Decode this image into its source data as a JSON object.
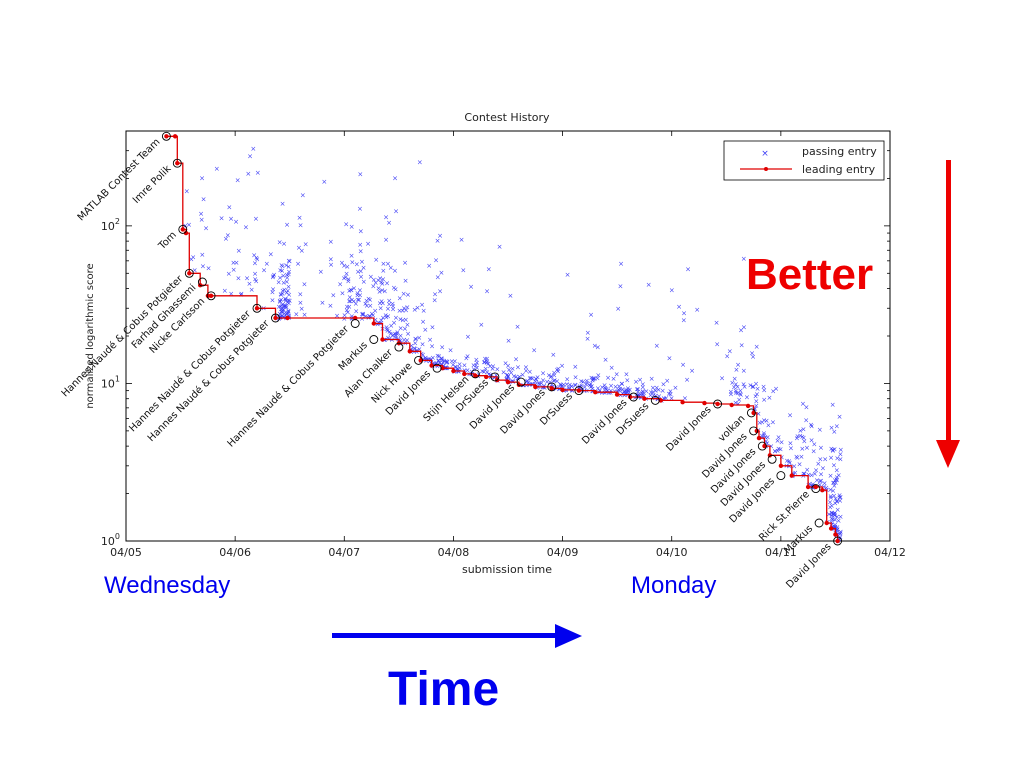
{
  "annotations": {
    "start_day": "Wednesday",
    "end_day": "Monday",
    "better": "Better",
    "time": "Time",
    "colors": {
      "better": "#ee0000",
      "time": "#0000ee",
      "days": "#0000ee"
    }
  },
  "chart_data": {
    "type": "scatter",
    "title": "Contest History",
    "xlabel": "submission time",
    "ylabel": "normalized logarithmic score",
    "x_unit": "days (fractional), 04/05 = 5.0",
    "xlim": [
      5.0,
      12.0
    ],
    "ylim": [
      1,
      400
    ],
    "yscale": "log",
    "grid": false,
    "legend_position": "top-right",
    "x_ticks": [
      "04/05",
      "04/06",
      "04/07",
      "04/08",
      "04/09",
      "04/10",
      "04/11",
      "04/12"
    ],
    "x_tick_values": [
      5,
      6,
      7,
      8,
      9,
      10,
      11,
      12
    ],
    "y_ticks": [
      {
        "value": 1,
        "base": "10",
        "exp": "0"
      },
      {
        "value": 10,
        "base": "10",
        "exp": "1"
      },
      {
        "value": 100,
        "base": "10",
        "exp": "2"
      }
    ],
    "series": [
      {
        "name": "passing entry",
        "marker": "x",
        "color": "#3b3bf5"
      },
      {
        "name": "leading entry",
        "marker": "dot",
        "color": "#e00000",
        "x": [
          5.37,
          5.45,
          5.47,
          5.52,
          5.55,
          5.58,
          5.68,
          5.75,
          5.78,
          6.2,
          6.37,
          6.48,
          7.1,
          7.27,
          7.35,
          7.5,
          7.6,
          7.7,
          7.8,
          7.9,
          8.0,
          8.1,
          8.2,
          8.3,
          8.4,
          8.5,
          8.6,
          8.75,
          8.9,
          9.0,
          9.15,
          9.3,
          9.5,
          9.62,
          9.75,
          9.9,
          10.1,
          10.3,
          10.42,
          10.55,
          10.7,
          10.75,
          10.78,
          10.8,
          10.85,
          10.9,
          11.0,
          11.1,
          11.25,
          11.32,
          11.38,
          11.42,
          11.46,
          11.5,
          11.52
        ],
        "y": [
          370,
          370,
          250,
          95,
          90,
          50,
          42,
          36,
          36,
          30,
          26,
          26,
          26,
          24,
          19,
          18,
          16,
          14,
          13,
          12.5,
          12,
          11.5,
          11.2,
          11,
          10.5,
          10.2,
          9.8,
          9.5,
          9.3,
          9.1,
          9,
          8.8,
          8.5,
          8.2,
          8,
          7.8,
          7.6,
          7.5,
          7.4,
          7.3,
          7.2,
          6.5,
          5,
          4.5,
          4,
          3.5,
          3,
          2.6,
          2.2,
          2.2,
          2.1,
          1.3,
          1.2,
          1.1,
          1.0
        ]
      }
    ],
    "annotations": [
      {
        "text": "MATLAB Contest Team",
        "x": 5.37,
        "y": 370,
        "circled": true
      },
      {
        "text": "Imre Polik",
        "x": 5.47,
        "y": 250,
        "circled": true
      },
      {
        "text": "Tom",
        "x": 5.52,
        "y": 95,
        "circled": true
      },
      {
        "text": "Hannes Naudé & Cobus Potgieter",
        "x": 5.58,
        "y": 50,
        "circled": true
      },
      {
        "text": "Farhad Ghassemi",
        "x": 5.7,
        "y": 44,
        "circled": true
      },
      {
        "text": "Nicke Carlsson",
        "x": 5.78,
        "y": 36,
        "circled": true
      },
      {
        "text": "Hannes Naudé & Cobus Potgieter",
        "x": 6.2,
        "y": 30,
        "circled": true
      },
      {
        "text": "Hannes Naudé & Cobus Potgieter",
        "x": 6.37,
        "y": 26,
        "circled": true
      },
      {
        "text": "Hannes Naudé & Cobus Potgieter",
        "x": 7.1,
        "y": 24,
        "circled": true
      },
      {
        "text": "Markus",
        "x": 7.27,
        "y": 19,
        "circled": true
      },
      {
        "text": "Alan Chalker",
        "x": 7.5,
        "y": 17,
        "circled": true
      },
      {
        "text": "Nick Howe",
        "x": 7.68,
        "y": 14,
        "circled": true
      },
      {
        "text": "David Jones",
        "x": 7.85,
        "y": 12.5,
        "circled": true
      },
      {
        "text": "Stijn Helsen",
        "x": 8.2,
        "y": 11.5,
        "circled": true
      },
      {
        "text": "DrSuess",
        "x": 8.38,
        "y": 11,
        "circled": true
      },
      {
        "text": "David Jones",
        "x": 8.62,
        "y": 10.2,
        "circled": true
      },
      {
        "text": "David Jones",
        "x": 8.9,
        "y": 9.5,
        "circled": true
      },
      {
        "text": "DrSuess",
        "x": 9.15,
        "y": 9,
        "circled": true
      },
      {
        "text": "David Jones",
        "x": 9.65,
        "y": 8.2,
        "circled": true
      },
      {
        "text": "DrSuess",
        "x": 9.85,
        "y": 7.8,
        "circled": true
      },
      {
        "text": "David Jones",
        "x": 10.42,
        "y": 7.4,
        "circled": true
      },
      {
        "text": "volkan",
        "x": 10.73,
        "y": 6.5,
        "circled": true
      },
      {
        "text": "David Jones",
        "x": 10.75,
        "y": 5,
        "circled": true
      },
      {
        "text": "David Jones",
        "x": 10.83,
        "y": 4,
        "circled": true
      },
      {
        "text": "David Jones",
        "x": 10.92,
        "y": 3.3,
        "circled": true
      },
      {
        "text": "David Jones",
        "x": 11.0,
        "y": 2.6,
        "circled": true
      },
      {
        "text": "Rick St.Pierre",
        "x": 11.32,
        "y": 2.15,
        "circled": true
      },
      {
        "text": "Markus",
        "x": 11.35,
        "y": 1.3,
        "circled": true
      },
      {
        "text": "David Jones",
        "x": 11.52,
        "y": 1.0,
        "circled": true
      }
    ]
  }
}
